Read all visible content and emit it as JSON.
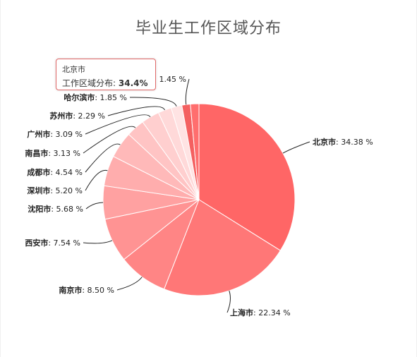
{
  "title": "毕业生工作区域分布",
  "tooltip": {
    "city": "北京市",
    "label": "工作区域分布:",
    "value": "34.4%"
  },
  "chart_data": {
    "type": "pie",
    "title": "毕业生工作区域分布",
    "series_name": "工作区域分布",
    "unit": "%",
    "slices": [
      {
        "name": "北京市",
        "value": 34.38,
        "label": "34.38 %",
        "color": "#ff6666"
      },
      {
        "name": "上海市",
        "value": 22.34,
        "label": "22.34 %",
        "color": "#ff7777"
      },
      {
        "name": "南京市",
        "value": 8.5,
        "label": "8.50 %",
        "color": "#ff8585"
      },
      {
        "name": "西安市",
        "value": 7.54,
        "label": "7.54 %",
        "color": "#ff9393"
      },
      {
        "name": "沈阳市",
        "value": 5.68,
        "label": "5.68 %",
        "color": "#ffa1a1"
      },
      {
        "name": "深圳市",
        "value": 5.2,
        "label": "5.20 %",
        "color": "#ffadad"
      },
      {
        "name": "成都市",
        "value": 4.54,
        "label": "4.54 %",
        "color": "#ffb9b9"
      },
      {
        "name": "南昌市",
        "value": 3.13,
        "label": "3.13 %",
        "color": "#ffc4c4"
      },
      {
        "name": "广州市",
        "value": 3.09,
        "label": "3.09 %",
        "color": "#ffcfcf"
      },
      {
        "name": "苏州市",
        "value": 2.29,
        "label": "2.29 %",
        "color": "#ffd9d9"
      },
      {
        "name": "哈尔滨市",
        "value": 1.85,
        "label": "1.85 %",
        "color": "#ffe3e3"
      },
      {
        "name": "",
        "value": 1.45,
        "label": "1.45 %",
        "color": "#f46060"
      },
      {
        "name": "",
        "value": 1.45,
        "label": "",
        "color": "#ff6e6e"
      }
    ]
  }
}
